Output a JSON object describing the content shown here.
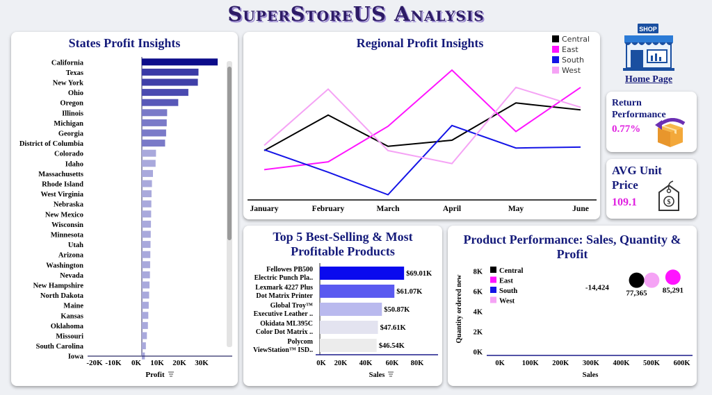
{
  "header": {
    "title": "SuperStoreUS Analysis"
  },
  "states_card": {
    "title": "States Profit Insights",
    "xlabel": "Profit",
    "filter_icon": "filter-icon",
    "ticks": [
      "-20K",
      "-10K",
      "0K",
      "10K",
      "20K",
      "30K"
    ]
  },
  "regional_card": {
    "title": "Regional Profit Insights"
  },
  "top5_card": {
    "title_line1": "Top 5 Best-Selling & Most",
    "title_line2": "Profitable Products",
    "xlabel": "Sales",
    "ticks": [
      "0K",
      "20K",
      "40K",
      "60K",
      "80K"
    ]
  },
  "perf_card": {
    "title_line1": "Product Performance: Sales, Quantity &",
    "title_line2": "Profit",
    "xlabel": "Sales",
    "ylabel": "Quantity ordered new",
    "xticks": [
      "0K",
      "100K",
      "200K",
      "300K",
      "400K",
      "500K",
      "600K"
    ],
    "yticks": [
      "0K",
      "2K",
      "4K",
      "6K",
      "8K"
    ]
  },
  "home": {
    "label": "Home Page",
    "icon": "shop-icon",
    "shop_text": "SHOP"
  },
  "return_kpi": {
    "label_line1": "Return",
    "label_line2": "Performance",
    "value": "0.77%",
    "icon": "return-box-icon"
  },
  "price_kpi": {
    "label_line1": "AVG Unit",
    "label_line2": "Price",
    "value": "109.1",
    "icon": "price-tag-icon",
    "tag_symbol": "$"
  },
  "colors": {
    "central": "#000000",
    "east": "#ff14ff",
    "south": "#1414e6",
    "west": "#f5a3f5",
    "title": "#141a7a"
  },
  "chart_data": [
    {
      "type": "bar",
      "title": "States Profit Insights",
      "orientation": "horizontal",
      "xlabel": "Profit",
      "categories": [
        "California",
        "Texas",
        "New York",
        "Ohio",
        "Oregon",
        "Illinois",
        "Michigan",
        "Georgia",
        "District of Columbia",
        "Colorado",
        "Idaho",
        "Massachusetts",
        "Rhode Island",
        "West Virginia",
        "Nebraska",
        "New Mexico",
        "Wisconsin",
        "Minnesota",
        "Utah",
        "Arizona",
        "Washington",
        "Nevada",
        "New Hampshire",
        "North Dakota",
        "Maine",
        "Kansas",
        "Oklahoma",
        "Missouri",
        "South Carolina",
        "Iowa"
      ],
      "values": [
        37500,
        28000,
        27700,
        23000,
        18000,
        12500,
        12300,
        12000,
        11500,
        7000,
        6800,
        5500,
        5000,
        4800,
        4700,
        4600,
        4500,
        4400,
        4300,
        4200,
        4100,
        4000,
        3800,
        3600,
        3400,
        3200,
        3000,
        2500,
        2000,
        1500
      ],
      "xlim": [
        -22000,
        44000
      ]
    },
    {
      "type": "line",
      "title": "Regional Profit Insights",
      "categories": [
        "January",
        "February",
        "March",
        "April",
        "May",
        "June"
      ],
      "series": [
        {
          "name": "Central",
          "values": [
            35,
            76,
            40,
            47,
            90,
            82
          ]
        },
        {
          "name": "East",
          "values": [
            13,
            22,
            63,
            128,
            57,
            108
          ]
        },
        {
          "name": "South",
          "values": [
            36,
            10,
            -16,
            64,
            38,
            39
          ]
        },
        {
          "name": "West",
          "values": [
            41,
            106,
            35,
            20,
            108,
            85
          ]
        }
      ],
      "ylim": [
        -22,
        140
      ]
    },
    {
      "type": "bar",
      "title": "Top 5 Best-Selling & Most Profitable Products",
      "orientation": "horizontal",
      "xlabel": "Sales",
      "categories": [
        [
          "Fellowes PB500",
          "Electric Punch Pla.."
        ],
        [
          "Lexmark 4227 Plus",
          "Dot Matrix Printer"
        ],
        [
          "Global Troy™",
          "Executive Leather .."
        ],
        [
          "Okidata ML395C",
          "Color Dot Matrix .."
        ],
        [
          "Polycom",
          "ViewStation™ ISD.."
        ]
      ],
      "values": [
        69010,
        61070,
        50870,
        47610,
        46540
      ],
      "labels": [
        "$69.01K",
        "$61.07K",
        "$50.87K",
        "$47.61K",
        "$46.54K"
      ],
      "xlim": [
        0,
        90000
      ]
    },
    {
      "type": "scatter",
      "title": "Product Performance: Sales, Quantity & Profit",
      "xlabel": "Sales",
      "ylabel": "Quantity ordered new",
      "legend": [
        "Central",
        "East",
        "South",
        "West"
      ],
      "points": [
        {
          "name": "Central",
          "x": 460000,
          "y": 7100,
          "label": "77,365"
        },
        {
          "name": "East",
          "x": 580000,
          "y": 7400,
          "label": "85,291"
        },
        {
          "name": "South",
          "x": 330000,
          "y": 6300,
          "label": "-14,424"
        },
        {
          "name": "West",
          "x": 510000,
          "y": 7100,
          "label": ""
        }
      ],
      "xlim": [
        -30000,
        640000
      ],
      "ylim": [
        -300,
        8800
      ]
    }
  ]
}
